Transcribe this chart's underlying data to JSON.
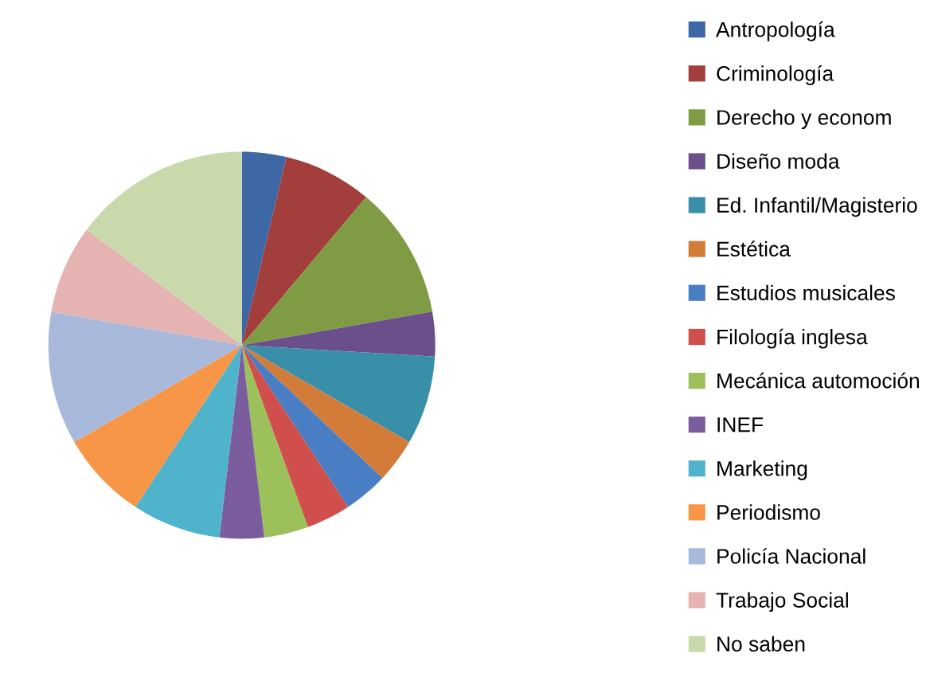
{
  "chart_data": {
    "type": "pie",
    "categories": [
      "Antropología",
      "Criminología",
      "Derecho y econom",
      "Diseño moda",
      "Ed. Infantil/Magisterio",
      "Estética",
      "Estudios musicales",
      "Filología inglesa",
      "Mecánica automoción",
      "INEF",
      "Marketing",
      "Periodismo",
      "Policía Nacional",
      "Trabajo Social",
      "No saben"
    ],
    "values": [
      3.7,
      7.4,
      11.1,
      3.7,
      7.4,
      3.7,
      3.7,
      3.7,
      3.7,
      3.7,
      7.4,
      7.4,
      11.1,
      7.4,
      14.8
    ],
    "colors": [
      "#3e67a6",
      "#a23f3c",
      "#7f9c45",
      "#6a4f8a",
      "#3a8fa8",
      "#d37c3a",
      "#4a7ec4",
      "#d04e4b",
      "#9cc05a",
      "#7b5d9e",
      "#4fb3cc",
      "#f79646",
      "#a9b9dc",
      "#e4b3b2",
      "#c9d9ac"
    ],
    "legend": "right"
  }
}
